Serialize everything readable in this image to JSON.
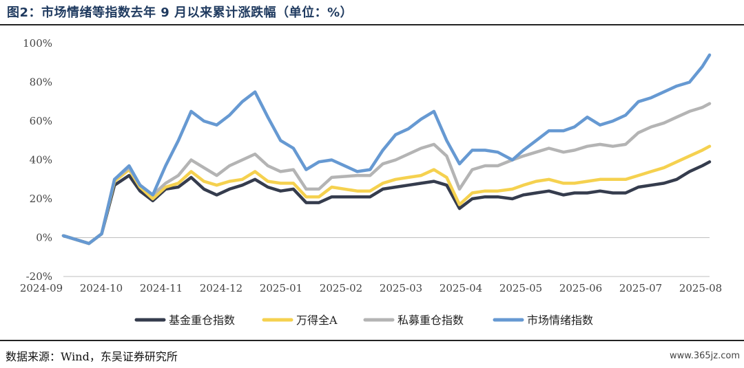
{
  "figure": {
    "title": "图2：市场情绪等指数去年 9 月以来累计涨跌幅（单位：%）",
    "source": "数据来源：Wind，东吴证券研究所",
    "watermark": "www.365jz.com"
  },
  "chart_data": {
    "type": "line",
    "title": "",
    "xlabel": "",
    "ylabel": "",
    "ylim": [
      -20,
      100
    ],
    "y_ticks": [
      -20,
      0,
      20,
      40,
      60,
      80,
      100
    ],
    "y_tick_labels": [
      "-20%",
      "0%",
      "20%",
      "40%",
      "60%",
      "80%",
      "100%"
    ],
    "x_tick_labels": [
      "2024-09",
      "2024-10",
      "2024-11",
      "2024-12",
      "2025-01",
      "2025-02",
      "2025-03",
      "2025-04",
      "2025-05",
      "2025-06",
      "2025-07",
      "2025-08"
    ],
    "grid": false,
    "legend_position": "bottom",
    "x": [
      "2024-09-02",
      "2024-09-09",
      "2024-09-16",
      "2024-09-23",
      "2024-09-30",
      "2024-10-08",
      "2024-10-14",
      "2024-10-21",
      "2024-10-28",
      "2024-11-04",
      "2024-11-11",
      "2024-11-18",
      "2024-11-25",
      "2024-12-02",
      "2024-12-09",
      "2024-12-16",
      "2024-12-23",
      "2024-12-30",
      "2025-01-06",
      "2025-01-13",
      "2025-01-20",
      "2025-01-27",
      "2025-02-10",
      "2025-02-17",
      "2025-02-24",
      "2025-03-03",
      "2025-03-10",
      "2025-03-17",
      "2025-03-24",
      "2025-03-31",
      "2025-04-07",
      "2025-04-14",
      "2025-04-21",
      "2025-04-28",
      "2025-05-06",
      "2025-05-12",
      "2025-05-19",
      "2025-05-26",
      "2025-06-03",
      "2025-06-09",
      "2025-06-16",
      "2025-06-23",
      "2025-06-30",
      "2025-07-07",
      "2025-07-14",
      "2025-07-21",
      "2025-07-28",
      "2025-08-04",
      "2025-08-11",
      "2025-08-18",
      "2025-08-22"
    ],
    "series": [
      {
        "name": "基金重仓指数",
        "color": "#353c4d",
        "values": [
          1,
          -1,
          -3,
          2,
          27,
          32,
          24,
          19,
          25,
          26,
          31,
          25,
          22,
          25,
          27,
          30,
          26,
          24,
          25,
          18,
          18,
          21,
          21,
          21,
          25,
          26,
          27,
          28,
          29,
          27,
          15,
          20,
          21,
          21,
          20,
          22,
          23,
          24,
          22,
          23,
          23,
          24,
          23,
          23,
          26,
          27,
          28,
          30,
          34,
          37,
          39
        ]
      },
      {
        "name": "万得全A",
        "color": "#f5d14f",
        "values": [
          1,
          -1,
          -3,
          2,
          29,
          35,
          26,
          20,
          26,
          28,
          34,
          29,
          27,
          29,
          30,
          34,
          29,
          28,
          28,
          21,
          21,
          26,
          24,
          24,
          28,
          30,
          31,
          32,
          35,
          31,
          17,
          23,
          24,
          24,
          25,
          27,
          29,
          30,
          28,
          28,
          29,
          30,
          30,
          30,
          32,
          34,
          36,
          39,
          42,
          45,
          47
        ]
      },
      {
        "name": "私募重仓指数",
        "color": "#b4b4b4",
        "values": [
          1,
          -1,
          -3,
          2,
          30,
          36,
          27,
          22,
          28,
          32,
          40,
          36,
          32,
          37,
          40,
          43,
          37,
          34,
          35,
          25,
          25,
          31,
          32,
          32,
          38,
          40,
          43,
          46,
          48,
          42,
          25,
          35,
          37,
          37,
          40,
          42,
          44,
          46,
          44,
          45,
          47,
          48,
          47,
          48,
          54,
          57,
          59,
          62,
          65,
          67,
          69
        ]
      },
      {
        "name": "市场情绪指数",
        "color": "#6699d2",
        "values": [
          1,
          -1,
          -3,
          2,
          30,
          37,
          27,
          22,
          37,
          50,
          65,
          60,
          58,
          63,
          70,
          75,
          62,
          50,
          46,
          35,
          39,
          40,
          34,
          35,
          45,
          53,
          56,
          61,
          65,
          50,
          38,
          45,
          45,
          44,
          40,
          45,
          50,
          55,
          55,
          57,
          62,
          58,
          60,
          63,
          70,
          72,
          75,
          78,
          80,
          88,
          94
        ]
      }
    ]
  }
}
